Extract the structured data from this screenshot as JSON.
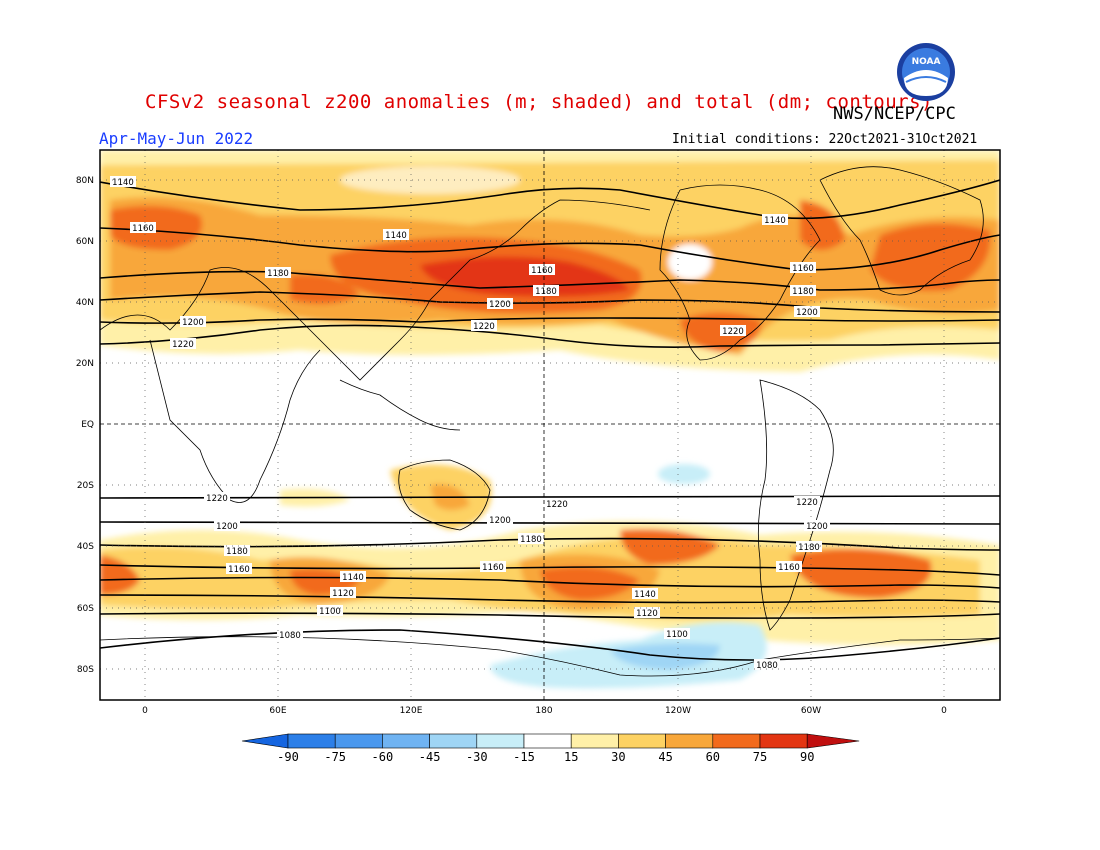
{
  "header": {
    "title": "CFSv2 seasonal z200 anomalies (m; shaded) and total (dm; contours)",
    "agency": "NWS/NCEP/CPC",
    "season": "Apr-May-Jun 2022",
    "initial_conditions": "Initial conditions: 22Oct2021-31Oct2021",
    "logo_text": "NOAA"
  },
  "map": {
    "lat_ticks": [
      "80N",
      "60N",
      "40N",
      "20N",
      "EQ",
      "20S",
      "40S",
      "60S",
      "80S"
    ],
    "lon_ticks": [
      "0",
      "60E",
      "120E",
      "180",
      "120W",
      "60W",
      "0"
    ],
    "contour_labels": {
      "1080": "1080",
      "1100": "1100",
      "1120": "1120",
      "1140": "1140",
      "1160": "1160",
      "1180": "1180",
      "1200": "1200",
      "1220": "1220"
    }
  },
  "colorbar": {
    "labels": [
      "-90",
      "-75",
      "-60",
      "-45",
      "-30",
      "-15",
      "15",
      "30",
      "45",
      "60",
      "75",
      "90"
    ],
    "colors": [
      "#1565e0",
      "#2c7fe8",
      "#4a98ee",
      "#6fb3f2",
      "#9fd5f5",
      "#c8eef8",
      "#ffffff",
      "#fff0a8",
      "#fdd263",
      "#f8a73a",
      "#f26a1c",
      "#e33512",
      "#c00f0f"
    ]
  }
}
